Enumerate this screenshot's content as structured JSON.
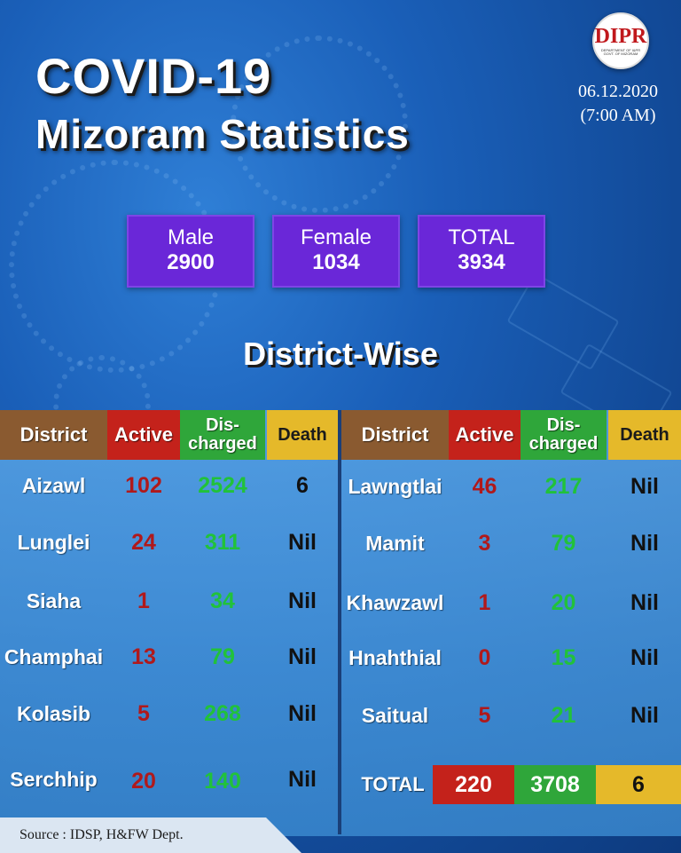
{
  "title_line1": "COVID-19",
  "title_line2": "Mizoram Statistics",
  "logo": {
    "mark": "DIPR",
    "subtitle": "DEPARTMENT OF I&PR GOVT. OF MIZORAM"
  },
  "date": "06.12.2020",
  "time": "(7:00 AM)",
  "summary": [
    {
      "label": "Male",
      "value": "2900"
    },
    {
      "label": "Female",
      "value": "1034"
    },
    {
      "label": "TOTAL",
      "value": "3934"
    }
  ],
  "section_title": "District-Wise",
  "headers": {
    "district": "District",
    "active": "Active",
    "discharged_line1": "Dis-",
    "discharged_line2": "charged",
    "death": "Death"
  },
  "left_rows": [
    {
      "district": "Aizawl",
      "active": "102",
      "discharged": "2524",
      "death": "6"
    },
    {
      "district": "Lunglei",
      "active": "24",
      "discharged": "311",
      "death": "Nil"
    },
    {
      "district": "Siaha",
      "active": "1",
      "discharged": "34",
      "death": "Nil"
    },
    {
      "district": "Champhai",
      "active": "13",
      "discharged": "79",
      "death": "Nil"
    },
    {
      "district": "Kolasib",
      "active": "5",
      "discharged": "268",
      "death": "Nil"
    },
    {
      "district": "Serchhip",
      "active": "20",
      "discharged": "140",
      "death": "Nil"
    }
  ],
  "right_rows": [
    {
      "district": "Lawngtlai",
      "active": "46",
      "discharged": "217",
      "death": "Nil"
    },
    {
      "district": "Mamit",
      "active": "3",
      "discharged": "79",
      "death": "Nil"
    },
    {
      "district": "Khawzawl",
      "active": "1",
      "discharged": "20",
      "death": "Nil"
    },
    {
      "district": "Hnahthial",
      "active": "0",
      "discharged": "15",
      "death": "Nil"
    },
    {
      "district": "Saitual",
      "active": "5",
      "discharged": "21",
      "death": "Nil"
    }
  ],
  "totals": {
    "label": "TOTAL",
    "active": "220",
    "discharged": "3708",
    "death": "6"
  },
  "source": "Source : IDSP, H&FW Dept.",
  "colors": {
    "active": "#c4221b",
    "discharged": "#2fa63a",
    "death": "#e5b92a",
    "district_header": "#8a5a30",
    "summary_box": "#6a27d8"
  }
}
